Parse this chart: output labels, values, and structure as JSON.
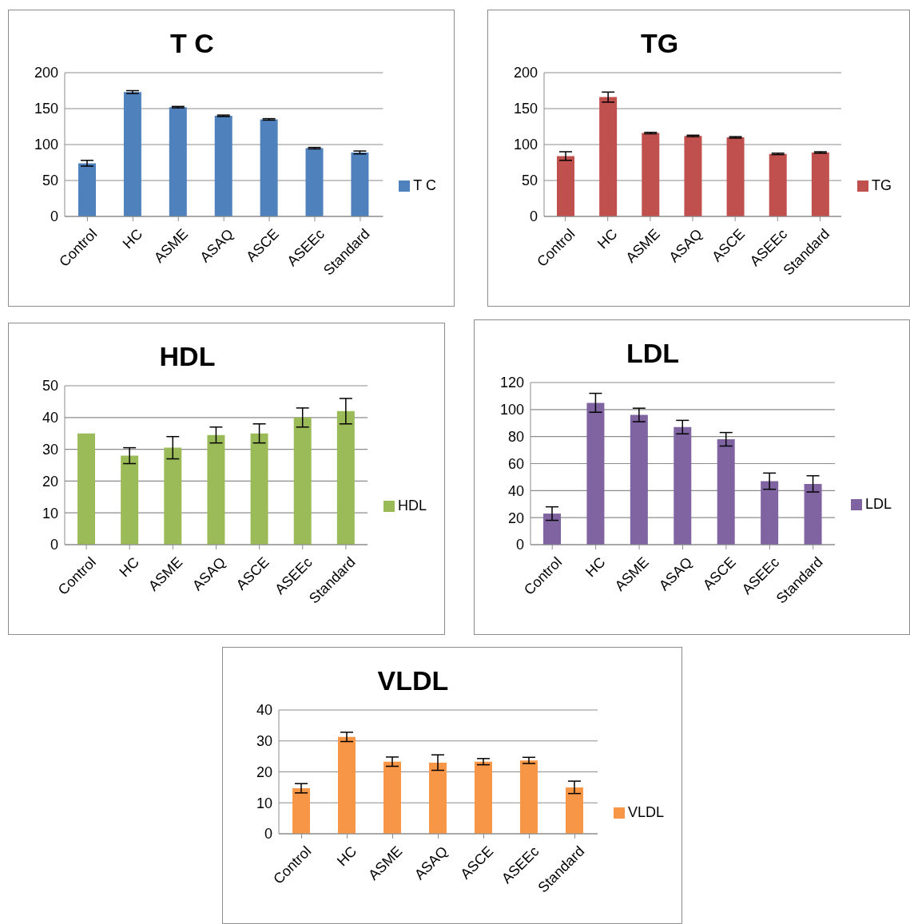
{
  "chart_data": [
    {
      "type": "bar",
      "title": "T C",
      "categories": [
        "Control",
        "HC",
        "ASME",
        "ASAQ",
        "ASCE",
        "ASEEc",
        "Standard"
      ],
      "series": [
        {
          "name": "T C",
          "color": "#4f81bd",
          "values": [
            74,
            173,
            152,
            140,
            135,
            95,
            89
          ],
          "errors": [
            4,
            2,
            1,
            1,
            1,
            1,
            2
          ]
        }
      ],
      "ylim": [
        0,
        200
      ],
      "yticks": [
        0,
        50,
        100,
        150,
        200
      ],
      "grid": "y",
      "legend": "right"
    },
    {
      "type": "bar",
      "title": "TG",
      "categories": [
        "Control",
        "HC",
        "ASME",
        "ASAQ",
        "ASCE",
        "ASEEc",
        "Standard"
      ],
      "series": [
        {
          "name": "TG",
          "color": "#c0504d",
          "values": [
            84,
            166,
            116,
            112,
            110,
            87,
            89
          ],
          "errors": [
            6,
            7,
            1,
            1,
            1,
            1,
            1
          ]
        }
      ],
      "ylim": [
        0,
        200
      ],
      "yticks": [
        0,
        50,
        100,
        150,
        200
      ],
      "grid": "y",
      "legend": "right"
    },
    {
      "type": "bar",
      "title": "HDL",
      "categories": [
        "Control",
        "HC",
        "ASME",
        "ASAQ",
        "ASCE",
        "ASEEc",
        "Standard"
      ],
      "series": [
        {
          "name": "HDL",
          "color": "#9bbb59",
          "values": [
            35,
            28,
            30.5,
            34.5,
            35,
            40,
            42
          ],
          "errors": [
            0,
            2.5,
            3.5,
            2.5,
            3,
            3,
            4
          ]
        }
      ],
      "ylim": [
        0,
        50
      ],
      "yticks": [
        0,
        10,
        20,
        30,
        40,
        50
      ],
      "grid": "y",
      "legend": "right"
    },
    {
      "type": "bar",
      "title": "LDL",
      "categories": [
        "Control",
        "HC",
        "ASME",
        "ASAQ",
        "ASCE",
        "ASEEc",
        "Standard"
      ],
      "series": [
        {
          "name": "LDL",
          "color": "#8064a2",
          "values": [
            23,
            105,
            96,
            87,
            78,
            47,
            45
          ],
          "errors": [
            5,
            7,
            5,
            5,
            5,
            6,
            6
          ]
        }
      ],
      "ylim": [
        0,
        120
      ],
      "yticks": [
        0,
        20,
        40,
        60,
        80,
        100,
        120
      ],
      "grid": "y",
      "legend": "right"
    },
    {
      "type": "bar",
      "title": "VLDL",
      "categories": [
        "Control",
        "HC",
        "ASME",
        "ASAQ",
        "ASCE",
        "ASEEc",
        "Standard"
      ],
      "series": [
        {
          "name": "VLDL",
          "color": "#f79646",
          "values": [
            14.7,
            31.3,
            23.3,
            23,
            23.3,
            23.7,
            15
          ],
          "errors": [
            1.5,
            1.5,
            1.5,
            2.5,
            1,
            1,
            2
          ]
        }
      ],
      "ylim": [
        0,
        40
      ],
      "yticks": [
        0,
        10,
        20,
        30,
        40
      ],
      "grid": "y",
      "legend": "right"
    }
  ]
}
